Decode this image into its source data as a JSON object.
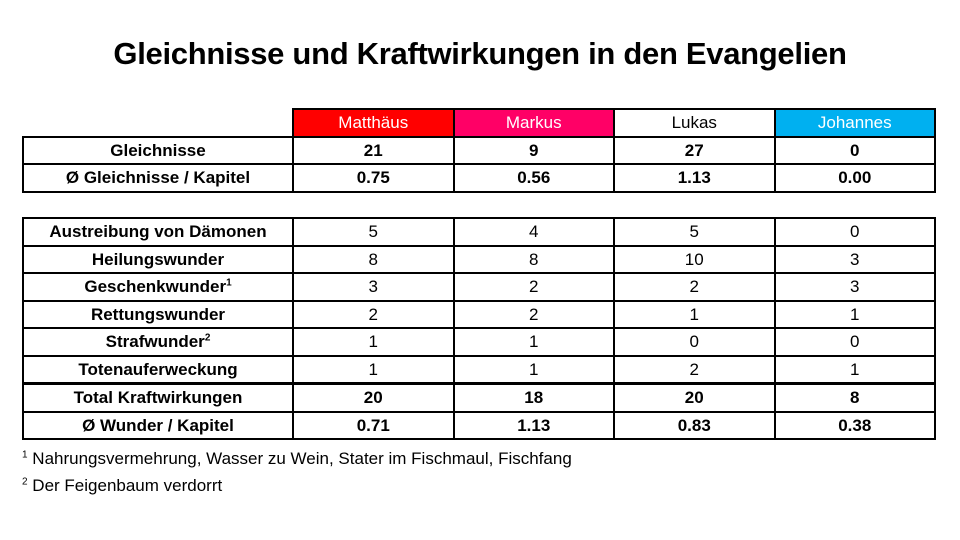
{
  "title": "Gleichnisse und Kraftwirkungen in den Evangelien",
  "colors": {
    "matthaeus": "#ff0000",
    "markus": "#ff0066",
    "lukas": "#ffffff",
    "johannes": "#00b0f0"
  },
  "headers": [
    "Matthäus",
    "Markus",
    "Lukas",
    "Johannes"
  ],
  "parables": [
    {
      "label": "Gleichnisse",
      "values": [
        "21",
        "9",
        "27",
        "0"
      ]
    },
    {
      "label": "Ø Gleichnisse / Kapitel",
      "values": [
        "0.75",
        "0.56",
        "1.13",
        "0.00"
      ]
    }
  ],
  "miracles": [
    {
      "label": "Austreibung von Dämonen",
      "values": [
        "5",
        "4",
        "5",
        "0"
      ]
    },
    {
      "label": "Heilungswunder",
      "values": [
        "8",
        "8",
        "10",
        "3"
      ]
    },
    {
      "label": "Geschenkwunder",
      "sup": "1",
      "values": [
        "3",
        "2",
        "2",
        "3"
      ]
    },
    {
      "label": "Rettungswunder",
      "values": [
        "2",
        "2",
        "1",
        "1"
      ]
    },
    {
      "label": "Strafwunder",
      "sup": "2",
      "values": [
        "1",
        "1",
        "0",
        "0"
      ]
    },
    {
      "label": "Totenauferweckung",
      "values": [
        "1",
        "1",
        "2",
        "1"
      ]
    }
  ],
  "totals": {
    "label": "Total Kraftwirkungen",
    "values": [
      "20",
      "18",
      "20",
      "8"
    ]
  },
  "avg_miracles": {
    "label": "Ø Wunder / Kapitel",
    "values": [
      "0.71",
      "1.13",
      "0.83",
      "0.38"
    ]
  },
  "footnotes": [
    {
      "mark": "1",
      "text": "Nahrungsvermehrung, Wasser zu Wein, Stater im Fischmaul, Fischfang"
    },
    {
      "mark": "2",
      "text": "Der Feigenbaum verdorrt"
    }
  ]
}
